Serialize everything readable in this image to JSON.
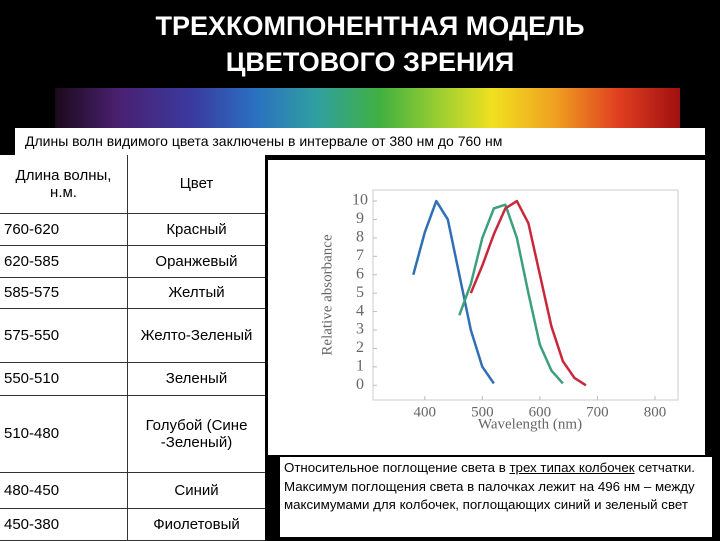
{
  "header": {
    "title": [
      "ТРЕХКОМПОНЕНТНАЯ МОДЕЛЬ",
      "ЦВЕТОВОГО ЗРЕНИЯ"
    ]
  },
  "subtitle": "Длины волн видимого цвета заключены в интервале от 380 нм до 760 нм",
  "table": {
    "header": [
      "Длина волны, н.м.",
      "Цвет"
    ],
    "rows": [
      [
        "760-620",
        "Красный"
      ],
      [
        "620-585",
        "Оранжевый"
      ],
      [
        "585-575",
        "Желтый"
      ],
      [
        "575-550",
        "Желто-Зеленый"
      ],
      [
        "550-510",
        "Зеленый"
      ],
      [
        "510-480",
        "Голубой (Сине -Зеленый)"
      ],
      [
        "480-450",
        "Синий"
      ],
      [
        "450-380",
        "Фиолетовый"
      ]
    ]
  },
  "chart_data": {
    "type": "line",
    "xlabel": "Wavelength (nm)",
    "ylabel": "Relative absorbance",
    "x": [
      380,
      400,
      420,
      440,
      460,
      480,
      500,
      520,
      540,
      560,
      580,
      600,
      620,
      640,
      660,
      680
    ],
    "series": [
      {
        "color": "#2f6fb5",
        "values": [
          6.0,
          8.3,
          10,
          9.0,
          6.0,
          3.0,
          1.0,
          0.1,
          null,
          null,
          null,
          null,
          null,
          null,
          null,
          null
        ]
      },
      {
        "color": "#3d9f7c",
        "values": [
          null,
          null,
          null,
          null,
          3.8,
          5.5,
          8.0,
          9.6,
          9.8,
          8.0,
          5.0,
          2.2,
          0.8,
          0.1,
          null,
          null
        ]
      },
      {
        "color": "#c8283a",
        "values": [
          null,
          null,
          null,
          null,
          null,
          5.0,
          6.5,
          8.2,
          9.6,
          10,
          8.8,
          6.0,
          3.2,
          1.3,
          0.4,
          0.0
        ]
      }
    ],
    "xlim": [
      310,
      840
    ],
    "ylim": [
      -0.8,
      10.6
    ],
    "xticks": [
      400,
      500,
      600,
      700,
      800
    ],
    "yticks": [
      0,
      1,
      2,
      3,
      4,
      5,
      6,
      7,
      8,
      9,
      10
    ]
  },
  "caption": {
    "before": "Относительное поглощение света в ",
    "underlined": "трех типах колбочек",
    "after": " сетчатки. Максимум поглощения света в палочках лежит на 496 нм – между максимумами для колбочек, поглощающих синий и зеленый свет"
  }
}
